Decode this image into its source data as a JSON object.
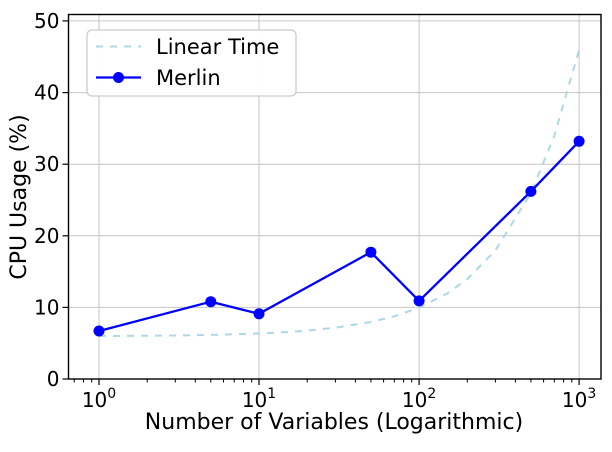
{
  "figure": {
    "background": "#ffffff"
  },
  "colors": {
    "grid": "#c6c6c6",
    "spine": "#000000",
    "text": "#000000",
    "legend_border": "#cccccc",
    "linear_time": "#ADD8E6",
    "merlin": "#0000FF"
  },
  "chart_data": {
    "type": "line",
    "title": "",
    "xlabel": "Number of Variables (Logarithmic)",
    "ylabel": "CPU Usage (%)",
    "x_scale": "log",
    "y_scale": "linear",
    "xlim": [
      0.645,
      1370
    ],
    "ylim": [
      0,
      50.9
    ],
    "grid": true,
    "legend": {
      "position": "upper left",
      "entries": [
        "Linear Time",
        "Merlin"
      ]
    },
    "x_ticks": [
      {
        "value": 1,
        "base": "10",
        "exp": "0"
      },
      {
        "value": 10,
        "base": "10",
        "exp": "1"
      },
      {
        "value": 100,
        "base": "10",
        "exp": "2"
      },
      {
        "value": 1000,
        "base": "10",
        "exp": "3"
      }
    ],
    "y_ticks": [
      0,
      10,
      20,
      30,
      40,
      50
    ],
    "series": [
      {
        "name": "Linear Time",
        "color": "#ADD8E6",
        "line_style": "dashed",
        "marker": "none",
        "relationship": "y ≈ 6 + 0.04·x (linear in x, shown on log axis)",
        "x": [
          1,
          1.5,
          2,
          3,
          4,
          5,
          7,
          10,
          15,
          20,
          30,
          50,
          70,
          100,
          150,
          200,
          300,
          500,
          700,
          1000
        ],
        "y": [
          6.0,
          6.02,
          6.04,
          6.08,
          6.12,
          6.16,
          6.24,
          6.36,
          6.56,
          6.76,
          7.16,
          7.96,
          8.76,
          9.96,
          11.96,
          13.96,
          17.96,
          25.96,
          33.96,
          45.96
        ]
      },
      {
        "name": "Merlin",
        "color": "#0000FF",
        "line_style": "solid",
        "marker": "circle",
        "x": [
          1,
          5,
          10,
          50,
          100,
          500,
          1000
        ],
        "y": [
          6.7,
          10.8,
          9.1,
          17.7,
          10.9,
          26.2,
          33.2
        ]
      }
    ]
  }
}
